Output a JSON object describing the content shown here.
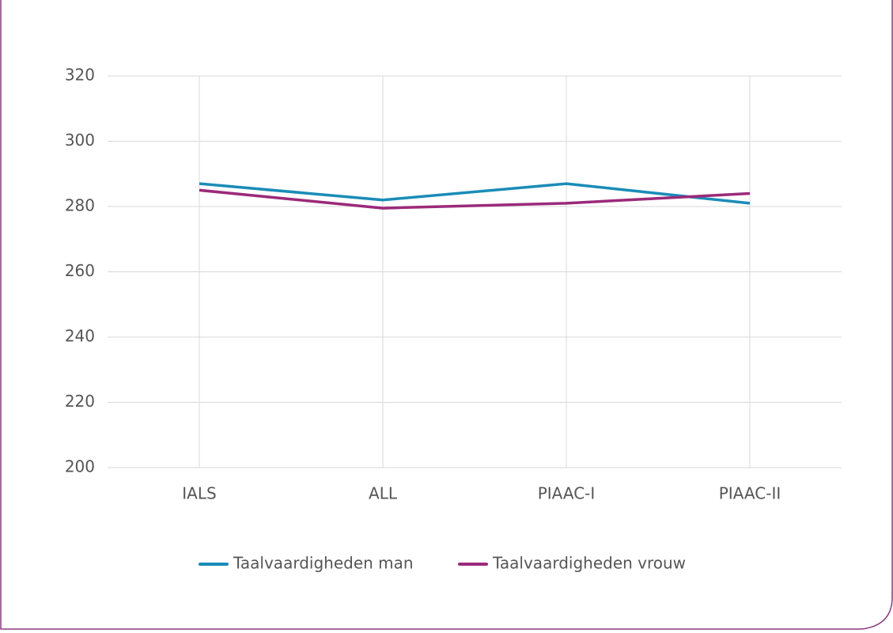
{
  "chart_data": {
    "type": "line",
    "categories": [
      "IALS",
      "ALL",
      "PIAAC-I",
      "PIAAC-II"
    ],
    "series": [
      {
        "name": "Taalvaardigheden man",
        "color": "#1a8cb8",
        "values": [
          287,
          282,
          287,
          281
        ]
      },
      {
        "name": "Taalvaardigheden vrouw",
        "color": "#9b2a7a",
        "values": [
          285,
          279.5,
          281,
          284
        ]
      }
    ],
    "ylim": [
      200,
      320
    ],
    "yticks": [
      200,
      220,
      240,
      260,
      280,
      300,
      320
    ],
    "grid": true,
    "legend": "bottom"
  }
}
